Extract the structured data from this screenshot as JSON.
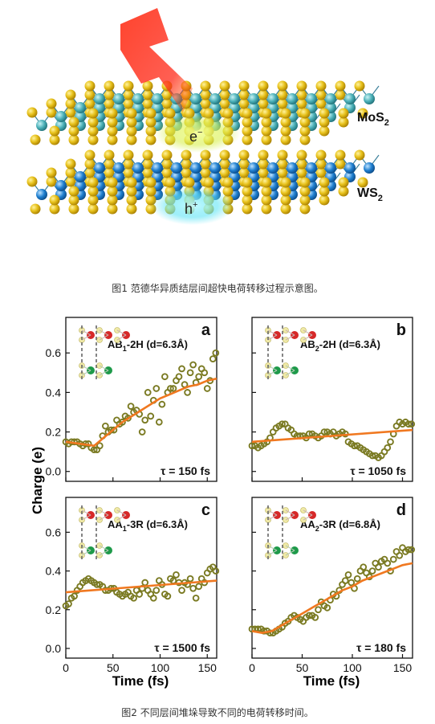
{
  "figure1": {
    "layer_top": "MoS",
    "layer_top_sub": "2",
    "layer_bottom": "WS",
    "layer_bottom_sub": "2",
    "electron_base": "e",
    "electron_sup": "−",
    "hole_base": "h",
    "hole_sup": "+",
    "caption": "图1 范德华异质结层间超快电荷转移过程示意图。",
    "colors": {
      "sulfur": "#e6c21a",
      "molybdenum": "#4bb0b8",
      "tungsten": "#1f7fd0",
      "laser": "#ff2a1a"
    }
  },
  "figure2": {
    "caption": "图2 不同层间堆垛导致不同的电荷转移时间。",
    "ylabel": "Charge (e)",
    "xlabel": "Time (fs)"
  },
  "chart_data": [
    {
      "type": "scatter",
      "panel": "a",
      "stacking_base": "AB",
      "stacking_sub": "1",
      "stacking_rest": "-2H (d=6.3Å)",
      "tau_label": "τ = 150 fs",
      "xlim": [
        0,
        160
      ],
      "ylim": [
        -0.05,
        0.78
      ],
      "yticks": [
        "0.0",
        "0.2",
        "0.4",
        "0.6"
      ],
      "x": [
        0,
        3,
        6,
        9,
        12,
        15,
        18,
        21,
        24,
        27,
        30,
        33,
        36,
        39,
        42,
        45,
        48,
        51,
        54,
        57,
        60,
        63,
        66,
        69,
        72,
        75,
        78,
        81,
        84,
        87,
        90,
        93,
        96,
        99,
        102,
        105,
        108,
        111,
        114,
        117,
        120,
        123,
        126,
        129,
        132,
        135,
        138,
        141,
        144,
        147,
        150,
        153,
        156,
        159
      ],
      "y": [
        0.15,
        0.14,
        0.15,
        0.15,
        0.15,
        0.14,
        0.13,
        0.14,
        0.14,
        0.12,
        0.11,
        0.11,
        0.13,
        0.18,
        0.23,
        0.2,
        0.21,
        0.21,
        0.26,
        0.24,
        0.25,
        0.28,
        0.27,
        0.33,
        0.3,
        0.31,
        0.29,
        0.2,
        0.26,
        0.4,
        0.28,
        0.36,
        0.42,
        0.25,
        0.34,
        0.48,
        0.4,
        0.42,
        0.42,
        0.46,
        0.48,
        0.52,
        0.44,
        0.4,
        0.5,
        0.54,
        0.45,
        0.48,
        0.52,
        0.5,
        0.42,
        0.46,
        0.57,
        0.6
      ],
      "fit_x": [
        0,
        30,
        40,
        50,
        60,
        70,
        80,
        90,
        100,
        110,
        120,
        130,
        140,
        150,
        160
      ],
      "fit_y": [
        0.15,
        0.13,
        0.17,
        0.21,
        0.25,
        0.28,
        0.31,
        0.34,
        0.37,
        0.39,
        0.41,
        0.43,
        0.44,
        0.46,
        0.47
      ]
    },
    {
      "type": "scatter",
      "panel": "b",
      "stacking_base": "AB",
      "stacking_sub": "2",
      "stacking_rest": "-2H (d=6.3Å)",
      "tau_label": "τ = 1050 fs",
      "xlim": [
        0,
        160
      ],
      "ylim": [
        -0.05,
        0.78
      ],
      "yticks": [],
      "x": [
        0,
        3,
        6,
        9,
        12,
        15,
        18,
        21,
        24,
        27,
        30,
        33,
        36,
        39,
        42,
        45,
        48,
        51,
        54,
        57,
        60,
        63,
        66,
        69,
        72,
        75,
        78,
        81,
        84,
        87,
        90,
        93,
        96,
        99,
        102,
        105,
        108,
        111,
        114,
        117,
        120,
        123,
        126,
        129,
        132,
        135,
        138,
        141,
        144,
        147,
        150,
        153,
        156,
        159
      ],
      "y": [
        0.13,
        0.13,
        0.12,
        0.13,
        0.14,
        0.15,
        0.17,
        0.2,
        0.22,
        0.23,
        0.24,
        0.24,
        0.22,
        0.21,
        0.19,
        0.18,
        0.18,
        0.18,
        0.17,
        0.19,
        0.19,
        0.18,
        0.17,
        0.18,
        0.2,
        0.2,
        0.19,
        0.2,
        0.18,
        0.19,
        0.2,
        0.19,
        0.15,
        0.14,
        0.13,
        0.13,
        0.12,
        0.11,
        0.1,
        0.09,
        0.08,
        0.08,
        0.07,
        0.08,
        0.1,
        0.12,
        0.15,
        0.19,
        0.23,
        0.25,
        0.24,
        0.25,
        0.24,
        0.24
      ],
      "fit_x": [
        0,
        160
      ],
      "fit_y": [
        0.15,
        0.21
      ]
    },
    {
      "type": "scatter",
      "panel": "c",
      "stacking_base": "AA",
      "stacking_sub": "1",
      "stacking_rest": "-3R (d=6.3Å)",
      "tau_label": "τ = 1500 fs",
      "xlim": [
        0,
        160
      ],
      "ylim": [
        -0.05,
        0.78
      ],
      "yticks": [
        "0.0",
        "0.2",
        "0.4",
        "0.6"
      ],
      "x": [
        0,
        3,
        6,
        9,
        12,
        15,
        18,
        21,
        24,
        27,
        30,
        33,
        36,
        39,
        42,
        45,
        48,
        51,
        54,
        57,
        60,
        63,
        66,
        69,
        72,
        75,
        78,
        81,
        84,
        87,
        90,
        93,
        96,
        99,
        102,
        105,
        108,
        111,
        114,
        117,
        120,
        123,
        126,
        129,
        132,
        135,
        138,
        141,
        144,
        147,
        150,
        153,
        156,
        159
      ],
      "y": [
        0.22,
        0.23,
        0.26,
        0.27,
        0.3,
        0.32,
        0.34,
        0.35,
        0.36,
        0.35,
        0.34,
        0.33,
        0.33,
        0.32,
        0.3,
        0.3,
        0.31,
        0.31,
        0.29,
        0.28,
        0.27,
        0.28,
        0.29,
        0.27,
        0.26,
        0.3,
        0.28,
        0.31,
        0.34,
        0.3,
        0.28,
        0.26,
        0.3,
        0.35,
        0.33,
        0.28,
        0.27,
        0.36,
        0.35,
        0.38,
        0.34,
        0.3,
        0.34,
        0.33,
        0.36,
        0.31,
        0.26,
        0.32,
        0.36,
        0.34,
        0.39,
        0.41,
        0.42,
        0.4
      ],
      "fit_x": [
        0,
        160
      ],
      "fit_y": [
        0.29,
        0.35
      ]
    },
    {
      "type": "scatter",
      "panel": "d",
      "stacking_base": "AA",
      "stacking_sub": "2",
      "stacking_rest": "-3R (d=6.8Å)",
      "tau_label": "τ = 180 fs",
      "xlim": [
        0,
        160
      ],
      "ylim": [
        -0.05,
        0.78
      ],
      "yticks": [],
      "x": [
        0,
        3,
        6,
        9,
        12,
        15,
        18,
        21,
        24,
        27,
        30,
        33,
        36,
        39,
        42,
        45,
        48,
        51,
        54,
        57,
        60,
        63,
        66,
        69,
        72,
        75,
        78,
        81,
        84,
        87,
        90,
        93,
        96,
        99,
        102,
        105,
        108,
        111,
        114,
        117,
        120,
        123,
        126,
        129,
        132,
        135,
        138,
        141,
        144,
        147,
        150,
        153,
        156,
        159
      ],
      "y": [
        0.1,
        0.1,
        0.1,
        0.1,
        0.09,
        0.09,
        0.08,
        0.08,
        0.09,
        0.1,
        0.11,
        0.13,
        0.14,
        0.16,
        0.17,
        0.16,
        0.15,
        0.14,
        0.16,
        0.17,
        0.17,
        0.16,
        0.2,
        0.24,
        0.22,
        0.21,
        0.25,
        0.28,
        0.27,
        0.3,
        0.33,
        0.35,
        0.38,
        0.34,
        0.31,
        0.36,
        0.4,
        0.42,
        0.39,
        0.37,
        0.4,
        0.44,
        0.42,
        0.45,
        0.46,
        0.44,
        0.4,
        0.46,
        0.5,
        0.48,
        0.52,
        0.5,
        0.51,
        0.51
      ],
      "fit_x": [
        0,
        10,
        20,
        30,
        40,
        50,
        60,
        70,
        80,
        90,
        100,
        110,
        120,
        130,
        140,
        150,
        160
      ],
      "fit_y": [
        0.09,
        0.08,
        0.09,
        0.12,
        0.15,
        0.18,
        0.21,
        0.24,
        0.27,
        0.3,
        0.32,
        0.35,
        0.37,
        0.39,
        0.41,
        0.43,
        0.44
      ]
    }
  ],
  "shared_xticks": [
    "0",
    "50",
    "100",
    "150"
  ],
  "colors": {
    "marker": "#7a7a22",
    "fit": "#f07820",
    "inset_red": "#d62828",
    "inset_green": "#1e9a4a",
    "inset_light": "#efe9a6"
  }
}
